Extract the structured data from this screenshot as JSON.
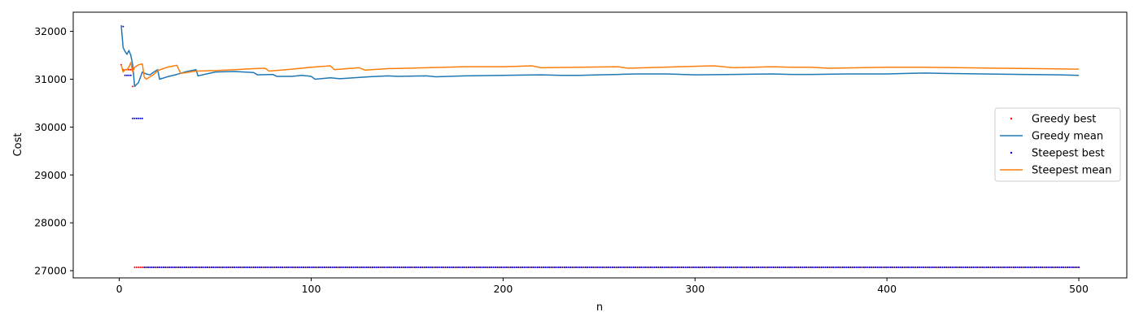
{
  "chart_data": {
    "type": "line",
    "title": "",
    "xlabel": "n",
    "ylabel": "Cost",
    "xlim": [
      -24,
      525
    ],
    "ylim": [
      26850,
      32400
    ],
    "xticks": [
      0,
      100,
      200,
      300,
      400,
      500
    ],
    "yticks": [
      27000,
      28000,
      29000,
      30000,
      31000,
      32000
    ],
    "grid": false,
    "legend_position": "center-right",
    "legend": [
      "Greedy best",
      "Greedy mean",
      "Steepest best",
      "Steepest mean"
    ],
    "series": [
      {
        "name": "Greedy best",
        "style": "points",
        "color": "#ff0000",
        "segments": [
          {
            "x": [
              1,
              2,
              3,
              4,
              5,
              6
            ],
            "y": [
              31300,
              31200,
              31200,
              31200,
              31200,
              31200
            ]
          },
          {
            "x": [
              7
            ],
            "y": [
              30850
            ]
          },
          {
            "x_start": 8,
            "x_end": 500,
            "y": 27070
          }
        ]
      },
      {
        "name": "Greedy mean",
        "style": "line",
        "color": "#1f77b4",
        "points": [
          [
            1,
            32130
          ],
          [
            2,
            31660
          ],
          [
            3,
            31580
          ],
          [
            4,
            31520
          ],
          [
            5,
            31600
          ],
          [
            6,
            31500
          ],
          [
            7,
            31300
          ],
          [
            8,
            30850
          ],
          [
            10,
            30930
          ],
          [
            12,
            31150
          ],
          [
            14,
            31110
          ],
          [
            16,
            31090
          ],
          [
            18,
            31150
          ],
          [
            20,
            31200
          ],
          [
            21,
            31000
          ],
          [
            25,
            31050
          ],
          [
            30,
            31100
          ],
          [
            35,
            31160
          ],
          [
            40,
            31200
          ],
          [
            41,
            31070
          ],
          [
            50,
            31150
          ],
          [
            60,
            31160
          ],
          [
            70,
            31140
          ],
          [
            72,
            31090
          ],
          [
            80,
            31100
          ],
          [
            82,
            31060
          ],
          [
            90,
            31060
          ],
          [
            95,
            31080
          ],
          [
            100,
            31060
          ],
          [
            102,
            31000
          ],
          [
            110,
            31030
          ],
          [
            115,
            31010
          ],
          [
            130,
            31050
          ],
          [
            140,
            31070
          ],
          [
            145,
            31060
          ],
          [
            160,
            31070
          ],
          [
            165,
            31050
          ],
          [
            180,
            31070
          ],
          [
            200,
            31080
          ],
          [
            220,
            31090
          ],
          [
            230,
            31080
          ],
          [
            240,
            31080
          ],
          [
            250,
            31090
          ],
          [
            260,
            31100
          ],
          [
            270,
            31110
          ],
          [
            285,
            31110
          ],
          [
            300,
            31090
          ],
          [
            320,
            31100
          ],
          [
            340,
            31110
          ],
          [
            350,
            31100
          ],
          [
            360,
            31100
          ],
          [
            380,
            31110
          ],
          [
            400,
            31110
          ],
          [
            410,
            31120
          ],
          [
            420,
            31130
          ],
          [
            430,
            31120
          ],
          [
            450,
            31110
          ],
          [
            470,
            31100
          ],
          [
            490,
            31090
          ],
          [
            500,
            31080
          ]
        ]
      },
      {
        "name": "Steepest best",
        "style": "points",
        "color": "#0000cc",
        "segments": [
          {
            "x": [
              2
            ],
            "y": [
              32100
            ]
          },
          {
            "x": [
              3,
              4,
              5,
              6
            ],
            "y": [
              31080,
              31080,
              31080,
              31080
            ]
          },
          {
            "x": [
              7,
              8,
              9,
              10,
              11,
              12
            ],
            "y": [
              30180,
              30180,
              30180,
              30180,
              30180,
              30180
            ]
          },
          {
            "x_start": 13,
            "x_end": 500,
            "y": 27070
          }
        ]
      },
      {
        "name": "Steepest mean",
        "style": "line",
        "color": "#ff7f0e",
        "points": [
          [
            1,
            31300
          ],
          [
            2,
            31150
          ],
          [
            3,
            31200
          ],
          [
            4,
            31200
          ],
          [
            5,
            31250
          ],
          [
            6,
            31350
          ],
          [
            7,
            31150
          ],
          [
            8,
            31250
          ],
          [
            10,
            31300
          ],
          [
            12,
            31320
          ],
          [
            13,
            31050
          ],
          [
            14,
            31000
          ],
          [
            16,
            31050
          ],
          [
            18,
            31100
          ],
          [
            20,
            31180
          ],
          [
            25,
            31250
          ],
          [
            30,
            31290
          ],
          [
            32,
            31120
          ],
          [
            40,
            31170
          ],
          [
            50,
            31180
          ],
          [
            60,
            31200
          ],
          [
            70,
            31220
          ],
          [
            76,
            31230
          ],
          [
            78,
            31170
          ],
          [
            90,
            31210
          ],
          [
            100,
            31250
          ],
          [
            110,
            31280
          ],
          [
            112,
            31200
          ],
          [
            125,
            31240
          ],
          [
            128,
            31190
          ],
          [
            140,
            31220
          ],
          [
            160,
            31240
          ],
          [
            180,
            31260
          ],
          [
            200,
            31260
          ],
          [
            215,
            31280
          ],
          [
            220,
            31240
          ],
          [
            260,
            31260
          ],
          [
            265,
            31230
          ],
          [
            300,
            31270
          ],
          [
            310,
            31280
          ],
          [
            320,
            31240
          ],
          [
            340,
            31260
          ],
          [
            350,
            31250
          ],
          [
            360,
            31250
          ],
          [
            370,
            31230
          ],
          [
            400,
            31250
          ],
          [
            420,
            31250
          ],
          [
            440,
            31240
          ],
          [
            460,
            31230
          ],
          [
            480,
            31220
          ],
          [
            500,
            31210
          ]
        ]
      }
    ]
  }
}
